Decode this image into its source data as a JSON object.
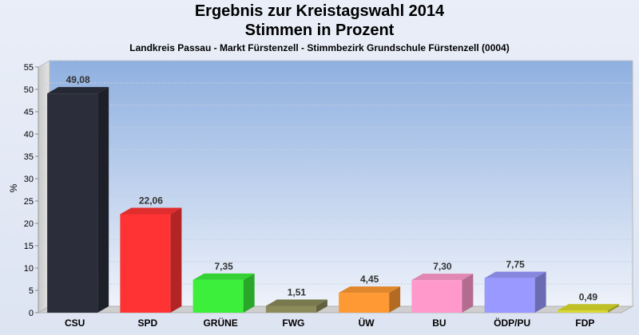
{
  "chart_data": {
    "type": "bar",
    "title": "Ergebnis zur Kreistagswahl 2014",
    "title_line2": "Stimmen in Prozent",
    "subtitle": "Landkreis Passau - Markt Fürstenzell - Stimmbezirk Grundschule Fürstenzell (0004)",
    "ylabel": "%",
    "ylim": [
      0,
      55
    ],
    "yticks": [
      0,
      5,
      10,
      15,
      20,
      25,
      30,
      35,
      40,
      45,
      50,
      55
    ],
    "categories": [
      "CSU",
      "SPD",
      "GRÜNE",
      "FWG",
      "ÜW",
      "BU",
      "ÖDP/PU",
      "FDP"
    ],
    "values": [
      49.08,
      22.06,
      7.35,
      1.51,
      4.45,
      7.3,
      7.75,
      0.49
    ],
    "value_labels": [
      "49,08",
      "22,06",
      "7,35",
      "1,51",
      "4,45",
      "7,30",
      "7,75",
      "0,49"
    ],
    "colors": [
      "#2b2e3a",
      "#ff3333",
      "#3bef3b",
      "#8a8a5a",
      "#ff9933",
      "#ff99cc",
      "#9999ff",
      "#d9d92b"
    ],
    "grid": true,
    "legend": "none"
  }
}
